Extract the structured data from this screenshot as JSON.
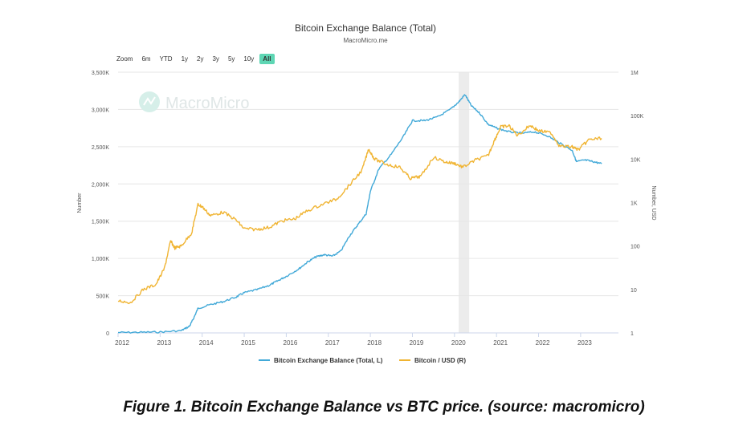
{
  "chart_data": {
    "type": "line",
    "title": "Bitcoin Exchange Balance (Total)",
    "subtitle": "MacroMicro.me",
    "watermark": "MacroMicro",
    "ylabel_left": "Number",
    "ylabel_right": "Number, USD",
    "left_axis": {
      "ticks": [
        0,
        500000,
        1000000,
        1500000,
        2000000,
        2500000,
        3000000,
        3500000
      ],
      "tick_labels": [
        "0",
        "500K",
        "1,000K",
        "1,500K",
        "2,000K",
        "2,500K",
        "3,000K",
        "3,500K"
      ],
      "ylim": [
        0,
        3500000
      ]
    },
    "right_axis": {
      "scale": "log",
      "ticks": [
        1,
        10,
        100,
        1000,
        10000,
        100000,
        1000000
      ],
      "tick_labels": [
        "1",
        "10",
        "100",
        "1K",
        "10K",
        "100K",
        "1M"
      ],
      "ylim": [
        1,
        1000000
      ]
    },
    "x_axis": {
      "xlim": [
        2012,
        2023.9
      ],
      "ticks": [
        2012,
        2013,
        2014,
        2015,
        2016,
        2017,
        2018,
        2019,
        2020,
        2021,
        2022,
        2023
      ],
      "tick_labels": [
        "2012",
        "2013",
        "2014",
        "2015",
        "2016",
        "2017",
        "2018",
        "2019",
        "2020",
        "2021",
        "2022",
        "2023"
      ]
    },
    "shaded_region": [
      2020.1,
      2020.35
    ],
    "series": [
      {
        "name": "Bitcoin Exchange Balance (Total, L)",
        "axis": "left",
        "color": "#42a9d8",
        "points": [
          [
            2012.0,
            5000
          ],
          [
            2012.5,
            8000
          ],
          [
            2013.0,
            12000
          ],
          [
            2013.5,
            30000
          ],
          [
            2013.7,
            90000
          ],
          [
            2013.8,
            200000
          ],
          [
            2013.9,
            330000
          ],
          [
            2014.2,
            380000
          ],
          [
            2014.5,
            420000
          ],
          [
            2014.8,
            480000
          ],
          [
            2015.0,
            540000
          ],
          [
            2015.3,
            580000
          ],
          [
            2015.6,
            640000
          ],
          [
            2015.8,
            700000
          ],
          [
            2016.0,
            760000
          ],
          [
            2016.3,
            860000
          ],
          [
            2016.5,
            950000
          ],
          [
            2016.7,
            1020000
          ],
          [
            2016.9,
            1050000
          ],
          [
            2017.1,
            1030000
          ],
          [
            2017.3,
            1100000
          ],
          [
            2017.5,
            1300000
          ],
          [
            2017.7,
            1450000
          ],
          [
            2017.9,
            1600000
          ],
          [
            2018.0,
            1900000
          ],
          [
            2018.2,
            2200000
          ],
          [
            2018.5,
            2400000
          ],
          [
            2018.8,
            2650000
          ],
          [
            2019.0,
            2850000
          ],
          [
            2019.3,
            2850000
          ],
          [
            2019.6,
            2900000
          ],
          [
            2019.9,
            3000000
          ],
          [
            2020.1,
            3100000
          ],
          [
            2020.25,
            3200000
          ],
          [
            2020.4,
            3050000
          ],
          [
            2020.6,
            2950000
          ],
          [
            2020.8,
            2800000
          ],
          [
            2021.0,
            2750000
          ],
          [
            2021.3,
            2700000
          ],
          [
            2021.6,
            2680000
          ],
          [
            2021.9,
            2700000
          ],
          [
            2022.2,
            2650000
          ],
          [
            2022.5,
            2550000
          ],
          [
            2022.8,
            2450000
          ],
          [
            2022.9,
            2300000
          ],
          [
            2023.1,
            2320000
          ],
          [
            2023.3,
            2300000
          ],
          [
            2023.5,
            2270000
          ]
        ]
      },
      {
        "name": "Bitcoin / USD (R)",
        "axis": "right",
        "color": "#f0b432",
        "points": [
          [
            2012.0,
            5.5
          ],
          [
            2012.3,
            5
          ],
          [
            2012.6,
            10
          ],
          [
            2012.9,
            13
          ],
          [
            2013.1,
            30
          ],
          [
            2013.25,
            130
          ],
          [
            2013.35,
            90
          ],
          [
            2013.5,
            100
          ],
          [
            2013.75,
            200
          ],
          [
            2013.9,
            900
          ],
          [
            2014.0,
            800
          ],
          [
            2014.2,
            500
          ],
          [
            2014.5,
            600
          ],
          [
            2014.8,
            400
          ],
          [
            2015.0,
            250
          ],
          [
            2015.3,
            240
          ],
          [
            2015.6,
            270
          ],
          [
            2015.9,
            380
          ],
          [
            2016.2,
            420
          ],
          [
            2016.5,
            650
          ],
          [
            2016.9,
            950
          ],
          [
            2017.2,
            1200
          ],
          [
            2017.5,
            2500
          ],
          [
            2017.8,
            5500
          ],
          [
            2017.96,
            17000
          ],
          [
            2018.1,
            10000
          ],
          [
            2018.4,
            7500
          ],
          [
            2018.7,
            6500
          ],
          [
            2018.95,
            3600
          ],
          [
            2019.2,
            4000
          ],
          [
            2019.5,
            11000
          ],
          [
            2019.8,
            8500
          ],
          [
            2020.0,
            8000
          ],
          [
            2020.2,
            6500
          ],
          [
            2020.5,
            9500
          ],
          [
            2020.8,
            12000
          ],
          [
            2020.95,
            27000
          ],
          [
            2021.1,
            55000
          ],
          [
            2021.3,
            58000
          ],
          [
            2021.5,
            35000
          ],
          [
            2021.8,
            60000
          ],
          [
            2022.0,
            45000
          ],
          [
            2022.3,
            40000
          ],
          [
            2022.5,
            20000
          ],
          [
            2022.8,
            19000
          ],
          [
            2022.95,
            16500
          ],
          [
            2023.2,
            28000
          ],
          [
            2023.5,
            30000
          ]
        ]
      }
    ]
  },
  "zoom": {
    "label": "Zoom",
    "buttons": [
      "6m",
      "YTD",
      "1y",
      "2y",
      "3y",
      "5y",
      "10y",
      "All"
    ],
    "active": "All"
  },
  "caption": "Figure 1.  Bitcoin Exchange Balance vs BTC price. (source: macromicro)"
}
